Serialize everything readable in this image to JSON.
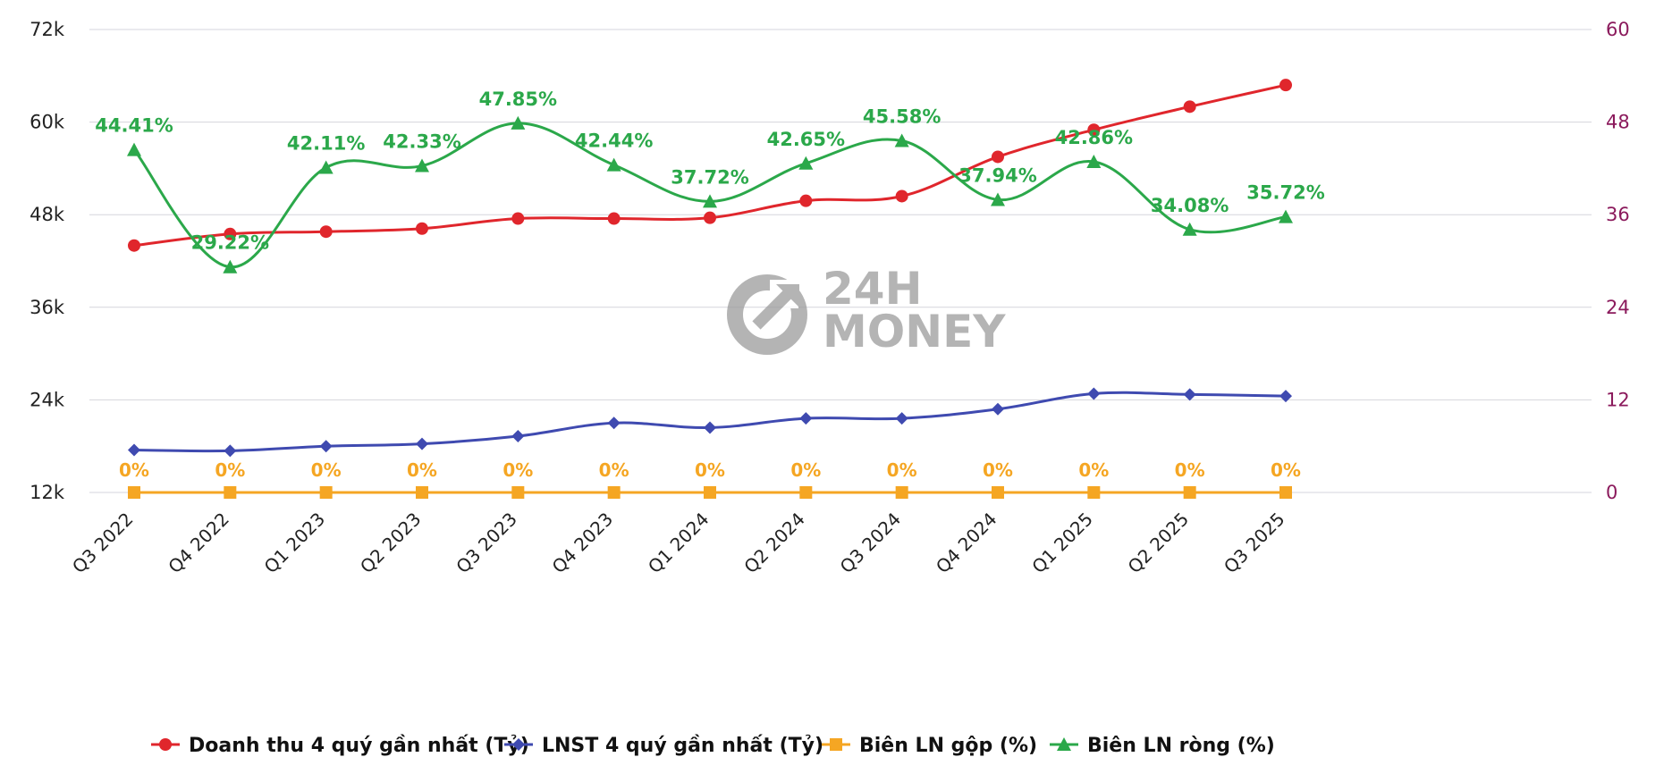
{
  "chart_data": {
    "type": "line",
    "categories": [
      "Q3 2022",
      "Q4 2022",
      "Q1 2023",
      "Q2 2023",
      "Q3 2023",
      "Q4 2023",
      "Q1 2024",
      "Q2 2024",
      "Q3 2024",
      "Q4 2024",
      "Q1 2025",
      "Q2 2025",
      "Q3 2025"
    ],
    "y_left": {
      "min": 12000,
      "max": 72000,
      "ticks": [
        "12k",
        "24k",
        "36k",
        "48k",
        "60k",
        "72k"
      ],
      "tick_values": [
        12000,
        24000,
        36000,
        48000,
        60000,
        72000
      ]
    },
    "y_right": {
      "min": 0,
      "max": 60,
      "ticks": [
        "0",
        "12",
        "24",
        "36",
        "48",
        "60"
      ],
      "tick_values": [
        0,
        12,
        24,
        36,
        48,
        60
      ]
    },
    "grid": true,
    "legend_position": "bottom",
    "series": [
      {
        "name": "Doanh thu 4 quý gần nhất (Tỷ)",
        "axis": "left",
        "color": "#e0262c",
        "marker": "circle",
        "values": [
          44000,
          45500,
          45800,
          46200,
          47500,
          47500,
          47600,
          49800,
          50400,
          55500,
          59000,
          62000,
          64800
        ]
      },
      {
        "name": "LNST 4 quý gần nhất (Tỷ)",
        "axis": "left",
        "color": "#3f4ab0",
        "marker": "diamond",
        "values": [
          17500,
          17400,
          18000,
          18300,
          19300,
          21000,
          20400,
          21600,
          21600,
          22800,
          24800,
          24700,
          24500
        ]
      },
      {
        "name": "Biên LN gộp (%)",
        "axis": "right",
        "color": "#f5a623",
        "marker": "square",
        "values": [
          0,
          0,
          0,
          0,
          0,
          0,
          0,
          0,
          0,
          0,
          0,
          0,
          0
        ],
        "labels": [
          "0%",
          "0%",
          "0%",
          "0%",
          "0%",
          "0%",
          "0%",
          "0%",
          "0%",
          "0%",
          "0%",
          "0%",
          "0%"
        ]
      },
      {
        "name": "Biên LN ròng (%)",
        "axis": "right",
        "color": "#2ba84a",
        "marker": "triangle",
        "values": [
          44.41,
          29.22,
          42.11,
          42.33,
          47.85,
          42.44,
          37.72,
          42.65,
          45.58,
          37.94,
          42.86,
          34.08,
          35.72
        ],
        "labels": [
          "44.41%",
          "29.22%",
          "42.11%",
          "42.33%",
          "47.85%",
          "42.44%",
          "37.72%",
          "42.65%",
          "45.58%",
          "37.94%",
          "42.86%",
          "34.08%",
          "35.72%"
        ]
      }
    ]
  },
  "watermark": {
    "line1": "24H",
    "line2": "MONEY",
    "color": "#9b9b9b"
  }
}
